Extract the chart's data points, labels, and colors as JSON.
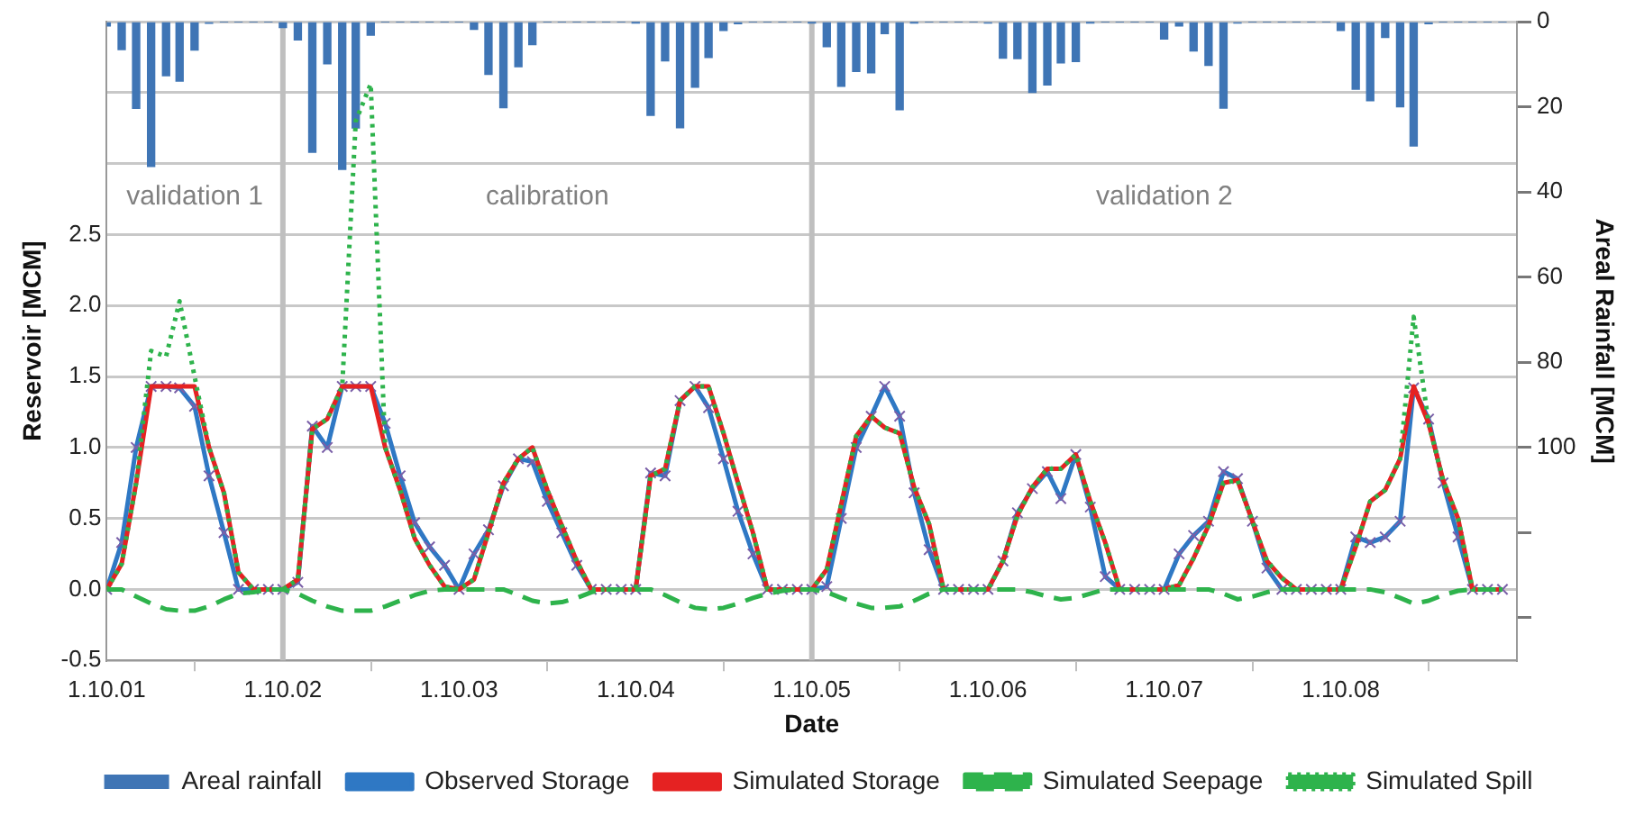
{
  "chart_data": {
    "type": "line",
    "xlabel": "Date",
    "ylabel": "Reservoir [MCM]",
    "y2label": "Areal Rainfall [MCM]",
    "x": [
      "2001-10",
      "2001-11",
      "2001-12",
      "2002-01",
      "2002-02",
      "2002-03",
      "2002-04",
      "2002-05",
      "2002-06",
      "2002-07",
      "2002-08",
      "2002-09",
      "2002-10",
      "2002-11",
      "2002-12",
      "2003-01",
      "2003-02",
      "2003-03",
      "2003-04",
      "2003-05",
      "2003-06",
      "2003-07",
      "2003-08",
      "2003-09",
      "2003-10",
      "2003-11",
      "2003-12",
      "2004-01",
      "2004-02",
      "2004-03",
      "2004-04",
      "2004-05",
      "2004-06",
      "2004-07",
      "2004-08",
      "2004-09",
      "2004-10",
      "2004-11",
      "2004-12",
      "2005-01",
      "2005-02",
      "2005-03",
      "2005-04",
      "2005-05",
      "2005-06",
      "2005-07",
      "2005-08",
      "2005-09",
      "2005-10",
      "2005-11",
      "2005-12",
      "2006-01",
      "2006-02",
      "2006-03",
      "2006-04",
      "2006-05",
      "2006-06",
      "2006-07",
      "2006-08",
      "2006-09",
      "2006-10",
      "2006-11",
      "2006-12",
      "2007-01",
      "2007-02",
      "2007-03",
      "2007-04",
      "2007-05",
      "2007-06",
      "2007-07",
      "2007-08",
      "2007-09",
      "2007-10",
      "2007-11",
      "2007-12",
      "2008-01",
      "2008-02",
      "2008-03",
      "2008-04",
      "2008-05",
      "2008-06",
      "2008-07",
      "2008-08",
      "2008-09",
      "2008-10",
      "2008-11",
      "2008-12",
      "2009-01",
      "2009-02",
      "2009-03",
      "2009-04",
      "2009-05",
      "2009-06",
      "2009-07",
      "2009-08",
      "2009-09"
    ],
    "xlim": [
      "2001-10",
      "2009-10"
    ],
    "xticks": [
      {
        "value": "2001-10",
        "label": "1.10.01"
      },
      {
        "value": "2002-10",
        "label": "1.10.02"
      },
      {
        "value": "2003-10",
        "label": "1.10.03"
      },
      {
        "value": "2004-10",
        "label": "1.10.04"
      },
      {
        "value": "2005-10",
        "label": "1.10.05"
      },
      {
        "value": "2006-10",
        "label": "1.10.06"
      },
      {
        "value": "2007-10",
        "label": "1.10.07"
      },
      {
        "value": "2008-10",
        "label": "1.10.08"
      },
      {
        "value": "2009-10",
        "label": null
      }
    ],
    "ylim": [
      -0.5,
      4.0
    ],
    "yticks": [
      {
        "value": -0.5,
        "label": "-0.5"
      },
      {
        "value": 0,
        "label": "0.0"
      },
      {
        "value": 0.5,
        "label": "0.5"
      },
      {
        "value": 1,
        "label": "1.0"
      },
      {
        "value": 1.5,
        "label": "1.5"
      },
      {
        "value": 2,
        "label": "2.0"
      },
      {
        "value": 2.5,
        "label": "2.5"
      },
      {
        "value": 3,
        "label": null
      },
      {
        "value": 3.5,
        "label": null
      },
      {
        "value": 4,
        "label": null
      }
    ],
    "y2lim": [
      150,
      0
    ],
    "y2ticks": [
      0,
      20,
      40,
      60,
      80,
      100,
      {
        "value": 120,
        "label": null
      },
      {
        "value": 140,
        "label": null
      }
    ],
    "grid": "y",
    "legend": "bottom",
    "ref_lines": [
      {
        "axis": "x",
        "value": "2002-10",
        "color": "#bfbfbf"
      },
      {
        "axis": "x",
        "value": "2005-10",
        "color": "#bfbfbf"
      }
    ],
    "annotations": [
      "validation 1",
      "calibration",
      "validation 2"
    ],
    "series": [
      {
        "name": "Areal rainfall",
        "type": "bar",
        "axis": "y2",
        "color": "#3f75b5",
        "values": [
          1.0,
          6.6,
          20.4,
          34,
          12.7,
          14,
          6.7,
          0.4,
          0,
          0,
          0,
          0,
          1.4,
          4.3,
          30.7,
          9.9,
          34.7,
          25,
          3.2,
          0,
          0,
          0,
          0,
          0,
          0,
          1.8,
          12.4,
          20.2,
          10.6,
          5.4,
          0,
          0,
          0,
          0,
          0,
          0,
          0.2,
          22,
          9.2,
          24.9,
          15.4,
          8.4,
          2.1,
          0.5,
          0,
          0,
          0,
          0,
          0.2,
          5.9,
          15.2,
          11.7,
          12,
          2.8,
          20.7,
          0.2,
          0,
          0,
          0,
          0,
          0.3,
          8.6,
          8.7,
          16.6,
          14.9,
          9.7,
          9.4,
          0.2,
          0,
          0,
          0,
          0,
          4.1,
          1.0,
          6.9,
          10.3,
          20.3,
          0.3,
          0,
          0,
          0,
          0,
          0,
          0,
          2.1,
          15.9,
          18.6,
          3.7,
          20,
          29.2,
          0.5,
          0,
          0,
          0,
          0,
          0
        ]
      },
      {
        "name": "Observed Storage",
        "marker": "cross",
        "color": "#2f78c4",
        "values": [
          0,
          0.33,
          1.0,
          1.43,
          1.43,
          1.42,
          1.29,
          0.8,
          0.4,
          0,
          0,
          0,
          0,
          0.05,
          1.15,
          1.0,
          1.43,
          1.43,
          1.43,
          1.17,
          0.8,
          0.47,
          0.3,
          0.17,
          0,
          0.25,
          0.42,
          0.73,
          0.92,
          0.9,
          0.62,
          0.4,
          0.17,
          0,
          0,
          0,
          0,
          0.82,
          0.8,
          1.33,
          1.43,
          1.28,
          0.92,
          0.55,
          0.25,
          0,
          0,
          0,
          0,
          0.02,
          0.5,
          1.0,
          1.22,
          1.43,
          1.22,
          0.68,
          0.28,
          0,
          0,
          0,
          0,
          0.2,
          0.54,
          0.71,
          0.83,
          0.64,
          0.95,
          0.58,
          0.09,
          0,
          0,
          0,
          0,
          0.25,
          0.38,
          0.48,
          0.83,
          0.78,
          0.48,
          0.15,
          0,
          0,
          0,
          0,
          0,
          0.37,
          0.33,
          0.37,
          0.48,
          1.42,
          1.2,
          0.75,
          0.37,
          0,
          0,
          0
        ]
      },
      {
        "name": "Simulated Storage",
        "color": "#e52222",
        "values": [
          0,
          0.18,
          0.75,
          1.43,
          1.43,
          1.43,
          1.43,
          1.0,
          0.68,
          0.12,
          0,
          0,
          0,
          0.07,
          1.13,
          1.2,
          1.43,
          1.43,
          1.43,
          1.0,
          0.7,
          0.36,
          0.17,
          0.02,
          0,
          0.07,
          0.4,
          0.75,
          0.92,
          1.0,
          0.7,
          0.45,
          0.2,
          0,
          0,
          0,
          0,
          0.8,
          0.85,
          1.33,
          1.43,
          1.43,
          1.1,
          0.75,
          0.4,
          0,
          0,
          0,
          0,
          0.14,
          0.6,
          1.08,
          1.22,
          1.14,
          1.1,
          0.72,
          0.46,
          0,
          0,
          0,
          0,
          0.2,
          0.52,
          0.72,
          0.85,
          0.85,
          0.95,
          0.62,
          0.33,
          0,
          0,
          0,
          0,
          0.03,
          0.22,
          0.45,
          0.75,
          0.77,
          0.48,
          0.2,
          0.08,
          0,
          0,
          0,
          0,
          0.3,
          0.62,
          0.7,
          0.92,
          1.43,
          1.17,
          0.77,
          0.5,
          0,
          0,
          0
        ]
      },
      {
        "name": "Simulated Seepage",
        "line_style": "dashed",
        "color": "#2eb34c",
        "values": [
          0,
          0,
          -0.05,
          -0.1,
          -0.14,
          -0.15,
          -0.15,
          -0.12,
          -0.07,
          -0.03,
          -0.02,
          0,
          0,
          -0.03,
          -0.08,
          -0.12,
          -0.15,
          -0.15,
          -0.15,
          -0.12,
          -0.08,
          -0.04,
          -0.01,
          0,
          0,
          0,
          0,
          0,
          -0.04,
          -0.08,
          -0.1,
          -0.09,
          -0.06,
          -0.02,
          0,
          0,
          0,
          0,
          -0.04,
          -0.09,
          -0.13,
          -0.14,
          -0.13,
          -0.1,
          -0.06,
          -0.03,
          -0.01,
          0,
          0,
          -0.02,
          -0.06,
          -0.1,
          -0.13,
          -0.13,
          -0.12,
          -0.08,
          -0.03,
          0,
          0,
          0,
          0,
          0,
          0,
          -0.02,
          -0.05,
          -0.07,
          -0.06,
          -0.03,
          0,
          0,
          0,
          0,
          0,
          0,
          0,
          0,
          -0.03,
          -0.07,
          -0.05,
          -0.02,
          0,
          0,
          0,
          0,
          0,
          0,
          0,
          -0.02,
          -0.06,
          -0.1,
          -0.08,
          -0.04,
          -0.01,
          0,
          0,
          0
        ]
      },
      {
        "name": "Simulated Spill",
        "line_style": "dotted",
        "color": "#2eb34c",
        "values": [
          0,
          0.18,
          0.75,
          1.68,
          1.64,
          2.03,
          1.5,
          1.0,
          0.68,
          0.12,
          0,
          0,
          0,
          0.07,
          1.13,
          1.2,
          1.43,
          3.3,
          3.56,
          1.0,
          0.7,
          0.36,
          0.17,
          0.02,
          0,
          0.07,
          0.4,
          0.75,
          0.92,
          1.0,
          0.7,
          0.45,
          0.2,
          0,
          0,
          0,
          0,
          0.8,
          0.85,
          1.33,
          1.43,
          1.43,
          1.1,
          0.75,
          0.4,
          0,
          0,
          0,
          0,
          0.14,
          0.6,
          1.08,
          1.22,
          1.14,
          1.1,
          0.72,
          0.46,
          0,
          0,
          0,
          0,
          0.2,
          0.52,
          0.72,
          0.85,
          0.85,
          0.95,
          0.62,
          0.33,
          0,
          0,
          0,
          0,
          0.03,
          0.22,
          0.45,
          0.75,
          0.77,
          0.48,
          0.2,
          0.08,
          0,
          0,
          0,
          0,
          0.3,
          0.62,
          0.7,
          0.92,
          1.92,
          1.17,
          0.77,
          0.5,
          0,
          0,
          0
        ]
      }
    ]
  }
}
